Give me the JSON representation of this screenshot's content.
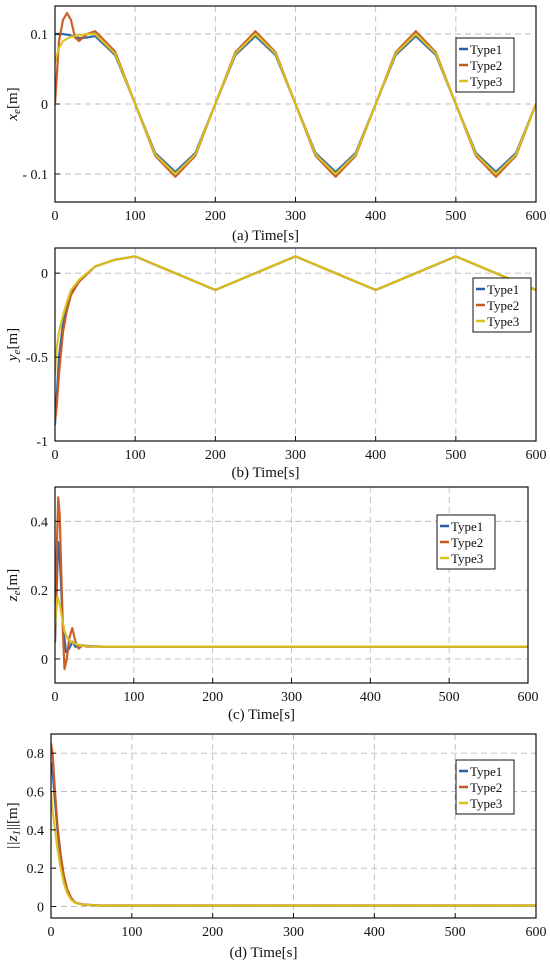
{
  "colors": {
    "type1": "#2a5fa8",
    "type2": "#c8581f",
    "type3": "#d9c21c",
    "grid": "#bdbdbd"
  },
  "chart_data": [
    {
      "type": "line",
      "panel": "a",
      "caption": "(a)  Time[s]",
      "ylabel_main": "x",
      "ylabel_sub": "e",
      "ylabel_unit": "[m]",
      "xlim": [
        0,
        600
      ],
      "ylim": [
        -0.14,
        0.14
      ],
      "xticks": [
        0,
        100,
        200,
        300,
        400,
        500,
        600
      ],
      "xtick_labels": [
        "0",
        "100",
        "200",
        "300",
        "400",
        "500",
        "600"
      ],
      "yticks": [
        -0.1,
        0,
        0.1
      ],
      "ytick_labels": [
        "- 0.1",
        "0",
        "0.1"
      ],
      "grid": true,
      "legend_position": "top-right",
      "legend": [
        "Type1",
        "Type2",
        "Type3"
      ],
      "series": [
        {
          "name": "Type1",
          "color_key": "type1",
          "x": [
            0,
            10,
            20,
            30,
            40,
            50,
            75,
            100,
            125,
            150,
            175,
            200,
            225,
            250,
            275,
            300,
            325,
            350,
            375,
            400,
            425,
            450,
            475,
            500,
            525,
            550,
            575,
            600
          ],
          "y": [
            0.1,
            0.1,
            0.098,
            0.094,
            0.095,
            0.097,
            0.07,
            0.0,
            -0.07,
            -0.097,
            -0.07,
            0.0,
            0.07,
            0.097,
            0.07,
            0.0,
            -0.07,
            -0.097,
            -0.07,
            0.0,
            0.07,
            0.097,
            0.07,
            0.0,
            -0.07,
            -0.097,
            -0.07,
            0.0
          ]
        },
        {
          "name": "Type2",
          "color_key": "type2",
          "x": [
            0,
            5,
            10,
            15,
            20,
            25,
            30,
            40,
            50,
            75,
            100,
            125,
            150,
            175,
            200,
            225,
            250,
            275,
            300,
            325,
            350,
            375,
            400,
            425,
            450,
            475,
            500,
            525,
            550,
            575,
            600
          ],
          "y": [
            0.0,
            0.09,
            0.12,
            0.13,
            0.12,
            0.095,
            0.09,
            0.1,
            0.104,
            0.075,
            0.0,
            -0.074,
            -0.104,
            -0.074,
            0.0,
            0.074,
            0.104,
            0.074,
            0.0,
            -0.074,
            -0.104,
            -0.074,
            0.0,
            0.074,
            0.104,
            0.074,
            0.0,
            -0.074,
            -0.104,
            -0.074,
            0.0
          ]
        },
        {
          "name": "Type3",
          "color_key": "type3",
          "x": [
            0,
            5,
            10,
            20,
            30,
            40,
            50,
            75,
            100,
            125,
            150,
            175,
            200,
            225,
            250,
            275,
            300,
            325,
            350,
            375,
            400,
            425,
            450,
            475,
            500,
            525,
            550,
            575,
            600
          ],
          "y": [
            0.06,
            0.08,
            0.09,
            0.096,
            0.098,
            0.1,
            0.1,
            0.072,
            0.0,
            -0.072,
            -0.1,
            -0.072,
            0.0,
            0.072,
            0.1,
            0.072,
            0.0,
            -0.072,
            -0.1,
            -0.072,
            0.0,
            0.072,
            0.1,
            0.072,
            0.0,
            -0.072,
            -0.1,
            -0.072,
            0.0
          ]
        }
      ]
    },
    {
      "type": "line",
      "panel": "b",
      "caption": "(b)  Time[s]",
      "ylabel_main": "y",
      "ylabel_sub": "e",
      "ylabel_unit": "[m]",
      "xlim": [
        0,
        600
      ],
      "ylim": [
        -1.0,
        0.15
      ],
      "xticks": [
        0,
        100,
        200,
        300,
        400,
        500,
        600
      ],
      "xtick_labels": [
        "0",
        "100",
        "200",
        "300",
        "400",
        "500",
        "600"
      ],
      "yticks": [
        -1,
        -0.5,
        0
      ],
      "ytick_labels": [
        "-1",
        "-0.5",
        "0"
      ],
      "grid": true,
      "legend_position": "top-right",
      "legend": [
        "Type1",
        "Type2",
        "Type3"
      ],
      "series": [
        {
          "name": "Type1",
          "color_key": "type1",
          "x": [
            0,
            2,
            5,
            10,
            15,
            20,
            30,
            50,
            75,
            100,
            150,
            200,
            250,
            300,
            350,
            400,
            450,
            500,
            550,
            600
          ],
          "y": [
            -0.9,
            -0.75,
            -0.5,
            -0.3,
            -0.2,
            -0.12,
            -0.05,
            0.04,
            0.08,
            0.1,
            0.0,
            -0.1,
            0.0,
            0.1,
            0.0,
            -0.1,
            0.0,
            0.1,
            0.0,
            -0.1
          ]
        },
        {
          "name": "Type2",
          "color_key": "type2",
          "x": [
            0,
            2,
            5,
            10,
            15,
            20,
            30,
            50,
            75,
            100,
            150,
            200,
            250,
            300,
            350,
            400,
            450,
            500,
            550,
            600
          ],
          "y": [
            -0.88,
            -0.8,
            -0.6,
            -0.35,
            -0.22,
            -0.13,
            -0.05,
            0.04,
            0.08,
            0.1,
            0.0,
            -0.1,
            0.0,
            0.1,
            0.0,
            -0.1,
            0.0,
            0.1,
            0.0,
            -0.1
          ]
        },
        {
          "name": "Type3",
          "color_key": "type3",
          "x": [
            0,
            2,
            5,
            10,
            15,
            20,
            30,
            50,
            75,
            100,
            150,
            200,
            250,
            300,
            350,
            400,
            450,
            500,
            550,
            600
          ],
          "y": [
            -0.6,
            -0.45,
            -0.35,
            -0.25,
            -0.17,
            -0.1,
            -0.04,
            0.04,
            0.08,
            0.1,
            0.0,
            -0.1,
            0.0,
            0.1,
            0.0,
            -0.1,
            0.0,
            0.1,
            0.0,
            -0.1
          ]
        }
      ]
    },
    {
      "type": "line",
      "panel": "c",
      "caption": "(c)  Time[s]",
      "ylabel_main": "z",
      "ylabel_sub": "e",
      "ylabel_unit": "[m]",
      "xlim": [
        0,
        600
      ],
      "ylim": [
        -0.07,
        0.5
      ],
      "xticks": [
        0,
        100,
        200,
        300,
        400,
        500,
        600
      ],
      "xtick_labels": [
        "0",
        "100",
        "200",
        "300",
        "400",
        "500",
        "600"
      ],
      "yticks": [
        0,
        0.2,
        0.4
      ],
      "ytick_labels": [
        "0",
        "0.2",
        "0.4"
      ],
      "grid": true,
      "legend_position": "top-right",
      "legend": [
        "Type1",
        "Type2",
        "Type3"
      ],
      "series": [
        {
          "name": "Type1",
          "color_key": "type1",
          "x": [
            0,
            2,
            4,
            6,
            8,
            10,
            14,
            18,
            22,
            26,
            30,
            40,
            60,
            600
          ],
          "y": [
            0.05,
            0.2,
            0.34,
            0.3,
            0.2,
            0.1,
            0.02,
            0.03,
            0.05,
            0.035,
            0.04,
            0.038,
            0.036,
            0.036
          ]
        },
        {
          "name": "Type2",
          "color_key": "type2",
          "x": [
            0,
            2,
            4,
            6,
            8,
            10,
            12,
            15,
            18,
            22,
            26,
            30,
            35,
            40,
            60,
            600
          ],
          "y": [
            0.05,
            0.3,
            0.47,
            0.42,
            0.25,
            0.08,
            -0.03,
            0.0,
            0.06,
            0.09,
            0.05,
            0.03,
            0.04,
            0.036,
            0.036,
            0.036
          ]
        },
        {
          "name": "Type3",
          "color_key": "type3",
          "x": [
            0,
            3,
            6,
            9,
            12,
            16,
            20,
            25,
            30,
            40,
            60,
            600
          ],
          "y": [
            0.1,
            0.18,
            0.16,
            0.12,
            0.08,
            0.06,
            0.05,
            0.045,
            0.04,
            0.037,
            0.036,
            0.036
          ]
        }
      ]
    },
    {
      "type": "line",
      "panel": "d",
      "caption": "(d)  Time[s]",
      "ylabel_main": "||z",
      "ylabel_sub": "1",
      "ylabel_unit": "||[m]",
      "xlim": [
        0,
        600
      ],
      "ylim": [
        -0.06,
        0.9
      ],
      "xticks": [
        0,
        100,
        200,
        300,
        400,
        500,
        600
      ],
      "xtick_labels": [
        "0",
        "100",
        "200",
        "300",
        "400",
        "500",
        "600"
      ],
      "yticks": [
        0,
        0.2,
        0.4,
        0.6,
        0.8
      ],
      "ytick_labels": [
        "0",
        "0.2",
        "0.4",
        "0.6",
        "0.8"
      ],
      "grid": true,
      "legend_position": "top-right",
      "legend": [
        "Type1",
        "Type2",
        "Type3"
      ],
      "series": [
        {
          "name": "Type1",
          "color_key": "type1",
          "x": [
            0,
            2,
            5,
            8,
            12,
            16,
            20,
            25,
            30,
            40,
            60,
            600
          ],
          "y": [
            0.75,
            0.7,
            0.55,
            0.4,
            0.25,
            0.15,
            0.08,
            0.04,
            0.02,
            0.01,
            0.005,
            0.005
          ]
        },
        {
          "name": "Type2",
          "color_key": "type2",
          "x": [
            0,
            2,
            5,
            8,
            12,
            16,
            20,
            25,
            30,
            40,
            60,
            600
          ],
          "y": [
            0.85,
            0.8,
            0.6,
            0.42,
            0.27,
            0.16,
            0.09,
            0.045,
            0.02,
            0.01,
            0.005,
            0.005
          ]
        },
        {
          "name": "Type3",
          "color_key": "type3",
          "x": [
            0,
            2,
            5,
            8,
            12,
            16,
            20,
            25,
            30,
            40,
            60,
            600
          ],
          "y": [
            0.6,
            0.5,
            0.4,
            0.3,
            0.2,
            0.12,
            0.07,
            0.035,
            0.018,
            0.009,
            0.005,
            0.005
          ]
        }
      ]
    }
  ]
}
